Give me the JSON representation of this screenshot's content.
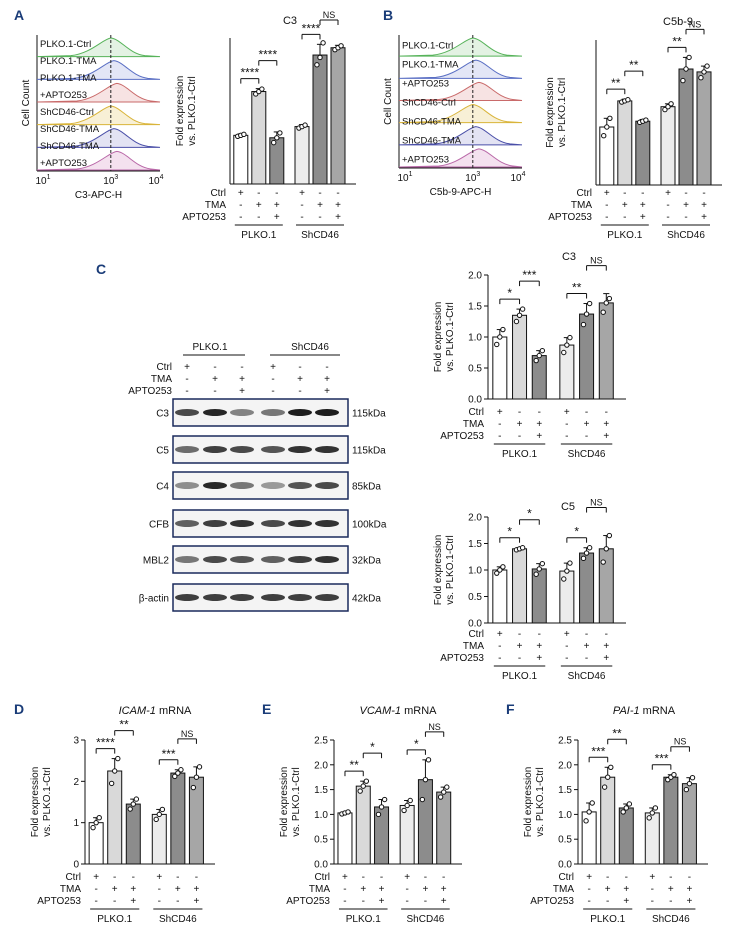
{
  "panel_labels": [
    "A",
    "B",
    "C",
    "D",
    "E",
    "F"
  ],
  "condition_rows": {
    "ctrl": "Ctrl",
    "tma": "TMA",
    "apto": "APTO253",
    "plus": "+",
    "minus": "-",
    "group1": "PLKO.1",
    "group2": "ShCD46"
  },
  "ylabel_line1": "Fold expression",
  "ylabel_line2": "vs. PLKO.1-Ctrl",
  "flow": {
    "ylabel": "Cell Count",
    "tracks": [
      {
        "label": "PLKO.1-Ctrl",
        "color": "#57b35a",
        "fill": "#e3f2e3"
      },
      {
        "label": "PLKO.1-TMA",
        "color": "#5a6fc4",
        "fill": "#e3e6f6"
      },
      {
        "label": "PLKO.1-TMA\n+APTO253",
        "color": "#c96a6a",
        "fill": "#f7e3e3"
      },
      {
        "label": "ShCD46-Ctrl",
        "color": "#d9b43a",
        "fill": "#f8f0d6"
      },
      {
        "label": "ShCD46-TMA",
        "color": "#4a4fa8",
        "fill": "#e3e3f3"
      },
      {
        "label": "ShCD46-TMA\n+APTO253",
        "color": "#b968a8",
        "fill": "#f4e1ef"
      }
    ],
    "tick_labels": [
      "10",
      "1",
      "10",
      "3",
      "10",
      "4"
    ],
    "panels": [
      {
        "xlabel": "C3-APC-H",
        "track_labels": [
          "PLKO.1-Ctrl",
          "PLKO.1-TMA",
          "PLKO.1-TMA",
          "+APTO253",
          "ShCD46-Ctrl",
          "ShCD46-TMA",
          "ShCD46-TMA",
          "+APTO253"
        ]
      },
      {
        "xlabel": "C5b-9-APC-H",
        "track_labels": [
          "PLKO.1-Ctrl",
          "PLKO.1-TMA",
          "+APTO253",
          "ShCD46-Ctrl",
          "ShCD46-TMA",
          "ShCD46-TMA",
          "+APTO253"
        ]
      }
    ]
  },
  "western": {
    "group_labels": [
      "PLKO.1",
      "ShCD46"
    ],
    "rows": [
      {
        "name": "C3",
        "size": "115kDa"
      },
      {
        "name": "C5",
        "size": "115kDa"
      },
      {
        "name": "C4",
        "size": "85kDa"
      },
      {
        "name": "CFB",
        "size": "100kDa"
      },
      {
        "name": "MBL2",
        "size": "32kDa"
      },
      {
        "name": "β-actin",
        "size": "42kDa"
      }
    ]
  },
  "chart_data": [
    {
      "id": "A",
      "type": "bar",
      "title": "C3",
      "ylim": [
        0,
        3
      ],
      "yticks": [],
      "categories": [
        "PLKO.1-Ctrl",
        "PLKO.1-TMA",
        "PLKO.1-TMA+APTO253",
        "ShCD46-Ctrl",
        "ShCD46-TMA",
        "ShCD46-TMA+APTO253"
      ],
      "values": [
        1.0,
        1.9,
        0.95,
        1.18,
        2.65,
        2.8
      ],
      "errors": [
        0.03,
        0.06,
        0.12,
        0.04,
        0.22,
        0.05
      ],
      "points": [
        [
          0.98,
          1.0,
          1.02
        ],
        [
          1.85,
          1.9,
          1.95
        ],
        [
          0.85,
          0.95,
          1.05
        ],
        [
          1.15,
          1.18,
          1.21
        ],
        [
          2.45,
          2.6,
          2.9
        ],
        [
          2.76,
          2.8,
          2.84
        ]
      ],
      "sig": [
        {
          "a": 0,
          "b": 1,
          "label": "****",
          "level": 0
        },
        {
          "a": 1,
          "b": 2,
          "label": "****",
          "level": 1
        },
        {
          "a": 3,
          "b": 4,
          "label": "****",
          "level": 0
        },
        {
          "a": 4,
          "b": 5,
          "label": "NS",
          "level": 1
        }
      ]
    },
    {
      "id": "B",
      "type": "bar",
      "title": "C5b-9",
      "ylim": [
        0,
        2.5
      ],
      "yticks": [],
      "categories": [
        "PLKO.1-Ctrl",
        "PLKO.1-TMA",
        "PLKO.1-TMA+APTO253",
        "ShCD46-Ctrl",
        "ShCD46-TMA",
        "ShCD46-TMA+APTO253"
      ],
      "values": [
        1.0,
        1.45,
        1.1,
        1.35,
        2.0,
        1.95
      ],
      "errors": [
        0.15,
        0.03,
        0.03,
        0.05,
        0.2,
        0.1
      ],
      "points": [
        [
          0.85,
          1.0,
          1.15
        ],
        [
          1.43,
          1.45,
          1.47
        ],
        [
          1.08,
          1.1,
          1.12
        ],
        [
          1.3,
          1.35,
          1.4
        ],
        [
          1.8,
          2.0,
          2.2
        ],
        [
          1.85,
          1.95,
          2.05
        ]
      ],
      "sig": [
        {
          "a": 0,
          "b": 1,
          "label": "**",
          "level": 0
        },
        {
          "a": 1,
          "b": 2,
          "label": "**",
          "level": 1
        },
        {
          "a": 3,
          "b": 4,
          "label": "**",
          "level": 0
        },
        {
          "a": 4,
          "b": 5,
          "label": "NS",
          "level": 1
        }
      ]
    },
    {
      "id": "C3",
      "type": "bar",
      "title": "C3",
      "ylim": [
        0,
        2.0
      ],
      "yticks": [
        0,
        0.5,
        1.0,
        1.5,
        2.0
      ],
      "ytick_labels": [
        "0.0",
        "0.5",
        "1.0",
        "1.5",
        "2.0"
      ],
      "categories": [
        "PLKO.1-Ctrl",
        "PLKO.1-TMA",
        "PLKO.1-TMA+APTO253",
        "ShCD46-Ctrl",
        "ShCD46-TMA",
        "ShCD46-TMA+APTO253"
      ],
      "values": [
        1.0,
        1.35,
        0.7,
        0.87,
        1.37,
        1.55
      ],
      "errors": [
        0.12,
        0.1,
        0.08,
        0.12,
        0.17,
        0.15
      ],
      "points": [
        [
          0.88,
          1.0,
          1.12
        ],
        [
          1.25,
          1.35,
          1.45
        ],
        [
          0.62,
          0.7,
          0.78
        ],
        [
          0.75,
          0.87,
          0.99
        ],
        [
          1.2,
          1.37,
          1.54
        ],
        [
          1.4,
          1.55,
          1.62
        ]
      ],
      "sig": [
        {
          "a": 0,
          "b": 1,
          "label": "*",
          "level": 0
        },
        {
          "a": 1,
          "b": 2,
          "label": "***",
          "level": 1
        },
        {
          "a": 3,
          "b": 4,
          "label": "**",
          "level": 0
        },
        {
          "a": 4,
          "b": 5,
          "label": "NS",
          "level": 1
        }
      ]
    },
    {
      "id": "C5",
      "type": "bar",
      "title": "C5",
      "ylim": [
        0,
        2.0
      ],
      "yticks": [
        0,
        0.5,
        1.0,
        1.5,
        2.0
      ],
      "ytick_labels": [
        "0.0",
        "0.5",
        "1.0",
        "1.5",
        "2.0"
      ],
      "categories": [
        "PLKO.1-Ctrl",
        "PLKO.1-TMA",
        "PLKO.1-TMA+APTO253",
        "ShCD46-Ctrl",
        "ShCD46-TMA",
        "ShCD46-TMA+APTO253"
      ],
      "values": [
        1.0,
        1.4,
        1.02,
        0.98,
        1.32,
        1.4
      ],
      "errors": [
        0.06,
        0.02,
        0.1,
        0.15,
        0.1,
        0.25
      ],
      "points": [
        [
          0.94,
          1.0,
          1.06
        ],
        [
          1.38,
          1.4,
          1.42
        ],
        [
          0.92,
          1.02,
          1.12
        ],
        [
          0.83,
          0.98,
          1.13
        ],
        [
          1.22,
          1.32,
          1.42
        ],
        [
          1.15,
          1.4,
          1.65
        ]
      ],
      "sig": [
        {
          "a": 0,
          "b": 1,
          "label": "*",
          "level": 0
        },
        {
          "a": 1,
          "b": 2,
          "label": "*",
          "level": 1
        },
        {
          "a": 3,
          "b": 4,
          "label": "*",
          "level": 0
        },
        {
          "a": 4,
          "b": 5,
          "label": "NS",
          "level": 1
        }
      ]
    },
    {
      "id": "D",
      "type": "bar",
      "title": "ICAM-1",
      "title_suffix": " mRNA",
      "ylim": [
        0,
        3
      ],
      "yticks": [
        0,
        1,
        2,
        3
      ],
      "ytick_labels": [
        "0",
        "1",
        "2",
        "3"
      ],
      "categories": [
        "PLKO.1-Ctrl",
        "PLKO.1-TMA",
        "PLKO.1-TMA+APTO253",
        "ShCD46-Ctrl",
        "ShCD46-TMA",
        "ShCD46-TMA+APTO253"
      ],
      "values": [
        1.0,
        2.25,
        1.45,
        1.2,
        2.2,
        2.1
      ],
      "errors": [
        0.12,
        0.3,
        0.12,
        0.12,
        0.08,
        0.25
      ],
      "points": [
        [
          0.88,
          1.0,
          1.12
        ],
        [
          1.95,
          2.25,
          2.55
        ],
        [
          1.33,
          1.45,
          1.57
        ],
        [
          1.08,
          1.2,
          1.32
        ],
        [
          2.12,
          2.2,
          2.28
        ],
        [
          1.85,
          2.1,
          2.35
        ]
      ],
      "sig": [
        {
          "a": 0,
          "b": 1,
          "label": "****",
          "level": 0
        },
        {
          "a": 1,
          "b": 2,
          "label": "**",
          "level": 1
        },
        {
          "a": 3,
          "b": 4,
          "label": "***",
          "level": 0
        },
        {
          "a": 4,
          "b": 5,
          "label": "NS",
          "level": 1
        }
      ]
    },
    {
      "id": "E",
      "type": "bar",
      "title": "VCAM-1",
      "title_suffix": " mRNA",
      "ylim": [
        0,
        2.5
      ],
      "yticks": [
        0,
        0.5,
        1.0,
        1.5,
        2.0,
        2.5
      ],
      "ytick_labels": [
        "0.0",
        "0.5",
        "1.0",
        "1.5",
        "2.0",
        "2.5"
      ],
      "categories": [
        "PLKO.1-Ctrl",
        "PLKO.1-TMA",
        "PLKO.1-TMA+APTO253",
        "ShCD46-Ctrl",
        "ShCD46-TMA",
        "ShCD46-TMA+APTO253"
      ],
      "values": [
        1.03,
        1.57,
        1.15,
        1.18,
        1.7,
        1.45
      ],
      "errors": [
        0.02,
        0.1,
        0.15,
        0.1,
        0.4,
        0.1
      ],
      "points": [
        [
          1.01,
          1.03,
          1.05
        ],
        [
          1.47,
          1.57,
          1.67
        ],
        [
          1.0,
          1.15,
          1.3
        ],
        [
          1.08,
          1.18,
          1.28
        ],
        [
          1.3,
          1.7,
          2.1
        ],
        [
          1.35,
          1.45,
          1.55
        ]
      ],
      "sig": [
        {
          "a": 0,
          "b": 1,
          "label": "**",
          "level": 0
        },
        {
          "a": 1,
          "b": 2,
          "label": "*",
          "level": 1
        },
        {
          "a": 3,
          "b": 4,
          "label": "*",
          "level": 0
        },
        {
          "a": 4,
          "b": 5,
          "label": "NS",
          "level": 1
        }
      ]
    },
    {
      "id": "F",
      "type": "bar",
      "title": "PAI-1",
      "title_suffix": " mRNA",
      "ylim": [
        0,
        2.5
      ],
      "yticks": [
        0,
        0.5,
        1.0,
        1.5,
        2.0,
        2.5
      ],
      "ytick_labels": [
        "0.0",
        "0.5",
        "1.0",
        "1.5",
        "2.0",
        "2.5"
      ],
      "categories": [
        "PLKO.1-Ctrl",
        "PLKO.1-TMA",
        "PLKO.1-TMA+APTO253",
        "ShCD46-Ctrl",
        "ShCD46-TMA",
        "ShCD46-TMA+APTO253"
      ],
      "values": [
        1.05,
        1.75,
        1.13,
        1.03,
        1.75,
        1.62
      ],
      "errors": [
        0.18,
        0.2,
        0.08,
        0.1,
        0.05,
        0.12
      ],
      "points": [
        [
          0.87,
          1.05,
          1.23
        ],
        [
          1.55,
          1.75,
          1.95
        ],
        [
          1.05,
          1.13,
          1.21
        ],
        [
          0.93,
          1.03,
          1.13
        ],
        [
          1.7,
          1.75,
          1.8
        ],
        [
          1.5,
          1.62,
          1.74
        ]
      ],
      "sig": [
        {
          "a": 0,
          "b": 1,
          "label": "***",
          "level": 0
        },
        {
          "a": 1,
          "b": 2,
          "label": "**",
          "level": 1
        },
        {
          "a": 3,
          "b": 4,
          "label": "***",
          "level": 0
        },
        {
          "a": 4,
          "b": 5,
          "label": "NS",
          "level": 1
        }
      ]
    }
  ],
  "bar_fills": [
    "#ffffff",
    "#d9d9d9",
    "#8c8c8c",
    "#ececec",
    "#8c8c8c",
    "#a6a6a6"
  ]
}
